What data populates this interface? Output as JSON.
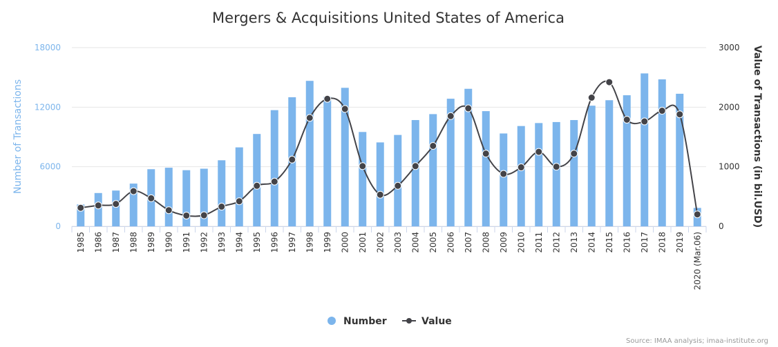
{
  "chart_data": {
    "type": "bar",
    "title": "Mergers & Acquisitions United States of America",
    "categories": [
      "1985",
      "1986",
      "1987",
      "1988",
      "1989",
      "1990",
      "1991",
      "1992",
      "1993",
      "1994",
      "1995",
      "1996",
      "1997",
      "1998",
      "1999",
      "2000",
      "2001",
      "2002",
      "2003",
      "2004",
      "2005",
      "2006",
      "2007",
      "2008",
      "2009",
      "2010",
      "2011",
      "2012",
      "2013",
      "2014",
      "2015",
      "2016",
      "2017",
      "2018",
      "2019",
      "2020 (Mar.06)"
    ],
    "y_left": {
      "label": "Number of Transactions",
      "ylim": [
        0,
        18000
      ],
      "ticks": [
        0,
        6000,
        12000,
        18000
      ],
      "color": "#7cb5ec"
    },
    "y_right": {
      "label": "Value of Transactions (in bil.USD)",
      "ylim": [
        0,
        3000
      ],
      "ticks": [
        0,
        1000,
        2000,
        3000
      ],
      "color": "#333333"
    },
    "series": [
      {
        "name": "Number",
        "type": "column",
        "axis": "left",
        "color": "#7cb5ec",
        "values": [
          2200,
          3350,
          3600,
          4300,
          5750,
          5900,
          5650,
          5800,
          6650,
          7950,
          9300,
          11700,
          13000,
          14650,
          13050,
          13950,
          9500,
          8450,
          9200,
          10700,
          11300,
          12850,
          13850,
          11600,
          9350,
          10100,
          10400,
          10500,
          10700,
          12150,
          12700,
          13200,
          15400,
          14800,
          13350,
          1850
        ]
      },
      {
        "name": "Value",
        "type": "spline",
        "axis": "right",
        "color": "#434348",
        "values": [
          310,
          350,
          375,
          590,
          470,
          270,
          180,
          185,
          330,
          420,
          680,
          750,
          1120,
          1820,
          2140,
          1970,
          1010,
          530,
          680,
          1010,
          1350,
          1850,
          1980,
          1220,
          880,
          990,
          1250,
          1000,
          1220,
          2160,
          2420,
          1790,
          1760,
          1940,
          1880,
          200
        ]
      }
    ],
    "legend": {
      "placement": "bottom-center"
    },
    "grid": true,
    "credits": "Source: IMAA analysis; imaa-institute.org"
  }
}
